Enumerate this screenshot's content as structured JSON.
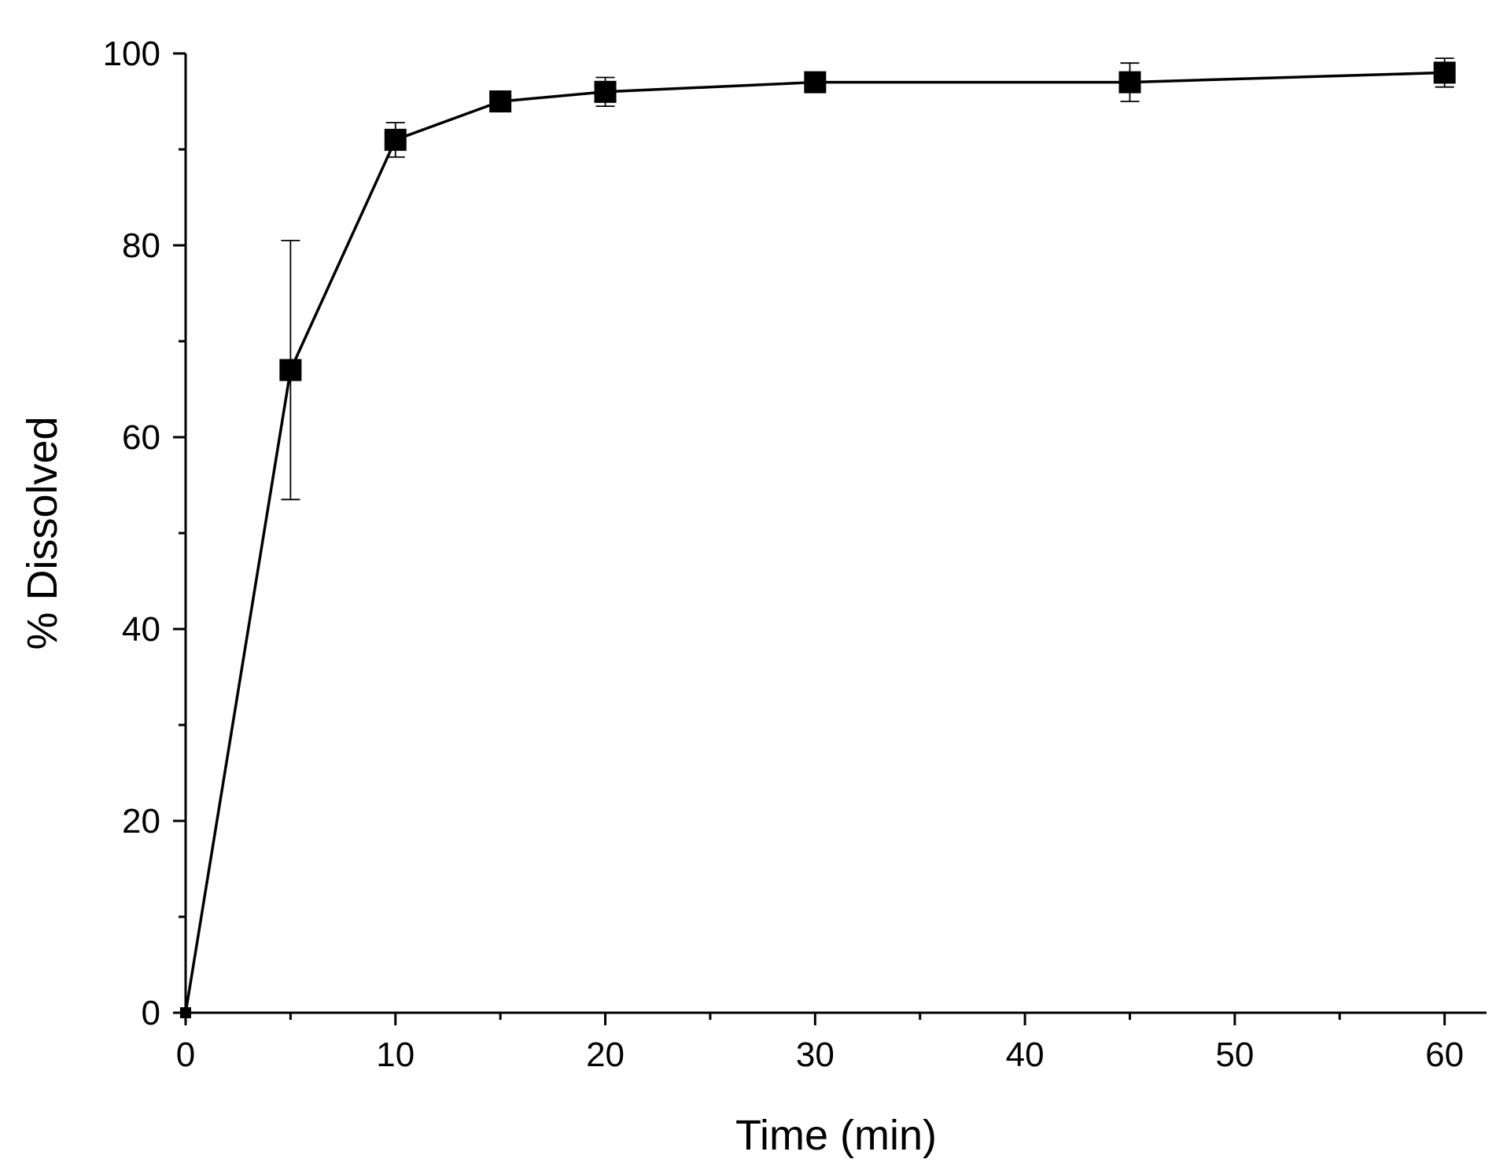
{
  "chart_data": {
    "type": "line",
    "title": "",
    "xlabel": "Time (min)",
    "ylabel": "% Dissolved",
    "xlim": [
      0,
      62
    ],
    "ylim": [
      0,
      100
    ],
    "x_ticks": [
      0,
      10,
      20,
      30,
      40,
      50,
      60
    ],
    "x_tick_labels": [
      "0",
      "10",
      "20",
      "30",
      "40",
      "50",
      "60"
    ],
    "x_minor_ticks": [
      5,
      15,
      25,
      35,
      45,
      55
    ],
    "y_ticks": [
      0,
      20,
      40,
      60,
      80,
      100
    ],
    "y_tick_labels": [
      "0",
      "20",
      "40",
      "60",
      "80",
      "100"
    ],
    "y_minor_ticks": [
      10,
      30,
      50,
      70,
      90
    ],
    "grid": false,
    "legend": "none",
    "marker": "square",
    "color": "#000000",
    "series": [
      {
        "x": [
          0,
          5,
          10,
          15,
          20,
          30,
          45,
          60
        ],
        "y": [
          0,
          67,
          91,
          95,
          96,
          97,
          97,
          98
        ],
        "error": [
          0,
          13.5,
          1.8,
          0.5,
          1.5,
          0.5,
          2.0,
          1.5
        ]
      }
    ]
  }
}
